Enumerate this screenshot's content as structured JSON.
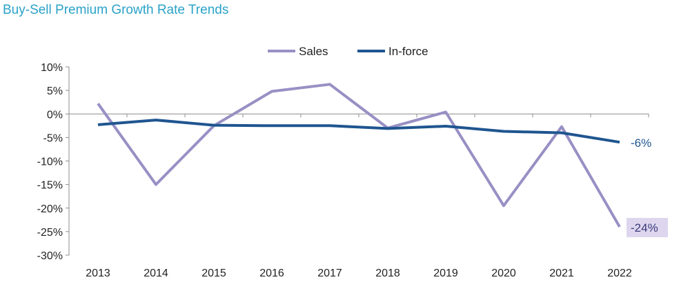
{
  "title": "Buy-Sell Premium Growth Rate Trends",
  "chart_data": {
    "type": "line",
    "title": "Buy-Sell Premium Growth Rate Trends",
    "xlabel": "",
    "ylabel": "",
    "categories": [
      "2013",
      "2014",
      "2015",
      "2016",
      "2017",
      "2018",
      "2019",
      "2020",
      "2021",
      "2022"
    ],
    "series": [
      {
        "name": "Sales",
        "color": "#9890c4",
        "values": [
          2.2,
          -15.0,
          -2.5,
          4.8,
          6.3,
          -3.0,
          0.4,
          -19.5,
          -2.7,
          -24.0
        ]
      },
      {
        "name": "In-force",
        "color": "#1f5590",
        "values": [
          -2.3,
          -1.3,
          -2.4,
          -2.5,
          -2.5,
          -3.1,
          -2.6,
          -3.7,
          -4.0,
          -6.0
        ]
      }
    ],
    "ylim": [
      -30,
      10
    ],
    "yticks": [
      10,
      5,
      0,
      -5,
      -10,
      -15,
      -20,
      -25,
      -30
    ],
    "ytick_labels": [
      "10%",
      "5%",
      "0%",
      "-5%",
      "-10%",
      "-15%",
      "-20%",
      "-25%",
      "-30%"
    ],
    "legend_position": "top-center",
    "grid": false,
    "annotations": [
      {
        "text": "-6%",
        "series": "In-force",
        "category": "2022",
        "color": "#1f5590",
        "boxed": false
      },
      {
        "text": "-24%",
        "series": "Sales",
        "category": "2022",
        "color": "#3a3a7a",
        "boxed": true,
        "box_color": "#ddd6ee"
      }
    ]
  }
}
